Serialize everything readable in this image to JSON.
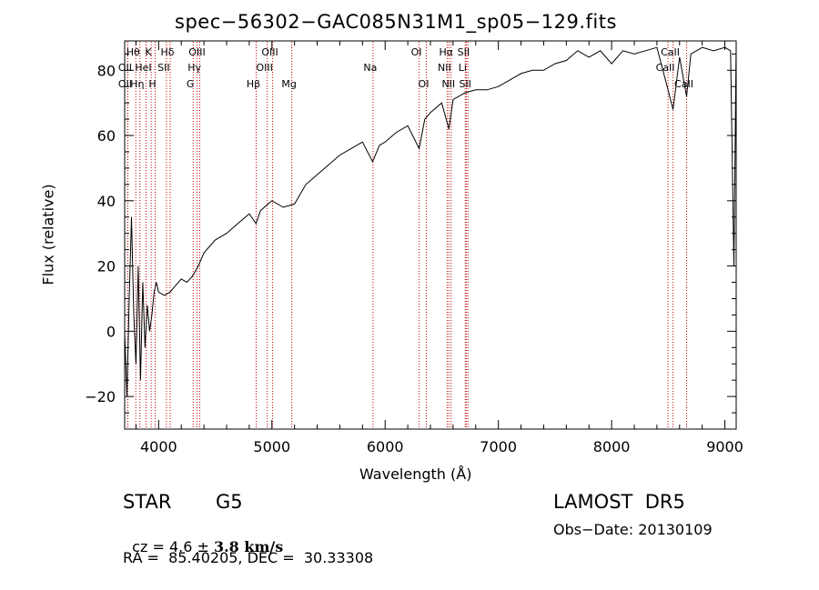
{
  "chart_data": {
    "type": "line",
    "title": "spec−56302−GAC085N31M1_sp05−129.fits",
    "xlabel": "Wavelength (Å)",
    "ylabel": "Flux (relative)",
    "xlim": [
      3700,
      9100
    ],
    "ylim": [
      -30,
      89
    ],
    "x_ticks": [
      4000,
      5000,
      6000,
      7000,
      8000,
      9000
    ],
    "x_tick_labels": [
      "4000",
      "5000",
      "6000",
      "7000",
      "8000",
      "9000"
    ],
    "y_ticks": [
      -20,
      0,
      20,
      40,
      60,
      80
    ],
    "y_tick_labels": [
      "−20",
      "0",
      "20",
      "40",
      "60",
      "80"
    ],
    "series": [
      {
        "x": [
          3700,
          3720,
          3740,
          3760,
          3780,
          3800,
          3820,
          3840,
          3860,
          3880,
          3900,
          3920,
          3940,
          3960,
          3980,
          4000,
          4050,
          4100,
          4150,
          4200,
          4250,
          4300,
          4350,
          4400,
          4500,
          4600,
          4700,
          4800,
          4860,
          4900,
          5000,
          5100,
          5200,
          5300,
          5400,
          5500,
          5600,
          5700,
          5800,
          5890,
          5950,
          6000,
          6100,
          6200,
          6300,
          6350,
          6400,
          6500,
          6563,
          6600,
          6700,
          6800,
          6900,
          7000,
          7100,
          7200,
          7300,
          7400,
          7500,
          7600,
          7700,
          7800,
          7900,
          8000,
          8100,
          8200,
          8300,
          8400,
          8498,
          8542,
          8600,
          8662,
          8700,
          8800,
          8900,
          9000,
          9050,
          9080,
          9100
        ],
        "y": [
          0,
          -20,
          10,
          35,
          5,
          -10,
          20,
          -15,
          15,
          -5,
          8,
          0,
          5,
          12,
          15,
          12,
          11,
          12,
          14,
          16,
          15,
          17,
          20,
          24,
          28,
          30,
          33,
          36,
          33,
          37,
          40,
          38,
          39,
          45,
          48,
          51,
          54,
          56,
          58,
          52,
          57,
          58,
          61,
          63,
          56,
          65,
          67,
          70,
          62,
          71,
          73,
          74,
          74,
          75,
          77,
          79,
          80,
          80,
          82,
          83,
          86,
          84,
          86,
          82,
          86,
          85,
          86,
          87,
          74,
          68,
          84,
          72,
          85,
          87,
          86,
          87,
          86,
          20,
          88
        ]
      }
    ],
    "lines": [
      {
        "label": "Hθ",
        "x": 3798,
        "row": 1
      },
      {
        "label": "K",
        "x": 3934,
        "row": 1
      },
      {
        "label": "Hδ",
        "x": 4102,
        "row": 1
      },
      {
        "label": "OIII",
        "x": 4363,
        "row": 1
      },
      {
        "label": "OIII",
        "x": 5007,
        "row": 1
      },
      {
        "label": "OI",
        "x": 6300,
        "row": 1
      },
      {
        "label": "Hα",
        "x": 6563,
        "row": 1
      },
      {
        "label": "SII",
        "x": 6717,
        "row": 1
      },
      {
        "label": "CaII",
        "x": 8542,
        "row": 1
      },
      {
        "label": "OII",
        "x": 3727,
        "row": 2
      },
      {
        "label": "HeI",
        "x": 3889,
        "row": 2
      },
      {
        "label": "SII",
        "x": 4069,
        "row": 2
      },
      {
        "label": "Hγ",
        "x": 4340,
        "row": 2
      },
      {
        "label": "OIII",
        "x": 4959,
        "row": 2
      },
      {
        "label": "Na",
        "x": 5893,
        "row": 2
      },
      {
        "label": "NII",
        "x": 6548,
        "row": 2
      },
      {
        "label": "Li",
        "x": 6708,
        "row": 2
      },
      {
        "label": "CaII",
        "x": 8498,
        "row": 2
      },
      {
        "label": "OII",
        "x": 3727,
        "row": 3
      },
      {
        "label": "Hη",
        "x": 3835,
        "row": 3
      },
      {
        "label": "H",
        "x": 3969,
        "row": 3
      },
      {
        "label": "G",
        "x": 4304,
        "row": 3
      },
      {
        "label": "Hβ",
        "x": 4861,
        "row": 3
      },
      {
        "label": "Mg",
        "x": 5175,
        "row": 3
      },
      {
        "label": "OI",
        "x": 6364,
        "row": 3
      },
      {
        "label": "NII",
        "x": 6583,
        "row": 3
      },
      {
        "label": "SII",
        "x": 6731,
        "row": 3
      },
      {
        "label": "CaII",
        "x": 8662,
        "row": 3
      }
    ],
    "colors": {
      "spectrum": "#000000",
      "lines": "#c00000",
      "axes": "#000000"
    },
    "grid": false
  },
  "info": {
    "object_class": "STAR",
    "subclass": "G5",
    "survey": "LAMOST  DR5",
    "cz_prefix": "cz = 4.6 ± ",
    "cz_error": "3.8",
    "cz_unit": " km/s",
    "obs_date": "Obs−Date: 20130109",
    "coords": "RA =  85.40205, DEC =  30.33308"
  }
}
